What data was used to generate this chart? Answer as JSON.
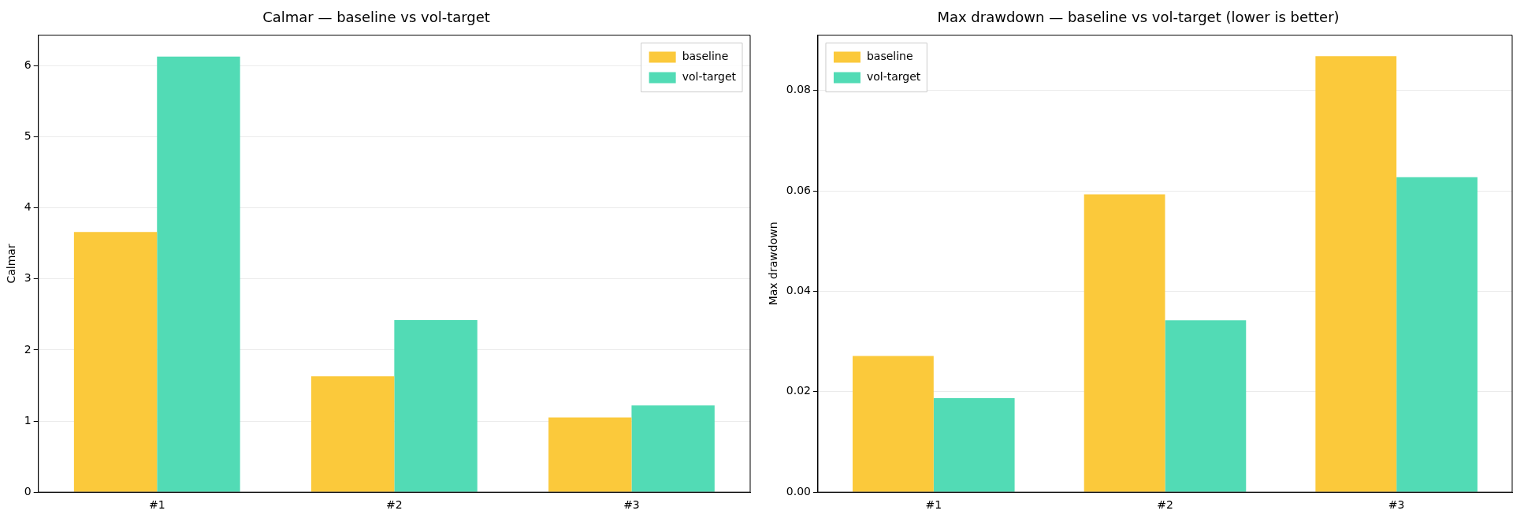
{
  "chart_data": [
    {
      "type": "bar",
      "title": "Calmar — baseline vs vol-target",
      "ylabel": "Calmar",
      "categories": [
        "#1",
        "#2",
        "#3"
      ],
      "series": [
        {
          "name": "baseline",
          "color": "#fbc93b",
          "values": [
            3.66,
            1.63,
            1.05
          ]
        },
        {
          "name": "vol-target",
          "color": "#52dbb5",
          "values": [
            6.13,
            2.42,
            1.22
          ]
        }
      ],
      "ylim": [
        0,
        6.43
      ],
      "yticks": [
        0,
        1,
        2,
        3,
        4,
        5,
        6
      ],
      "grid": "y",
      "legend": "top right"
    },
    {
      "type": "bar",
      "title": "Max drawdown — baseline vs vol-target (lower is better)",
      "ylabel": "Max drawdown",
      "categories": [
        "#1",
        "#2",
        "#3"
      ],
      "series": [
        {
          "name": "baseline",
          "color": "#fbc93b",
          "values": [
            0.0271,
            0.0593,
            0.0868
          ]
        },
        {
          "name": "vol-target",
          "color": "#52dbb5",
          "values": [
            0.0187,
            0.0342,
            0.0627
          ]
        }
      ],
      "ylim": [
        0,
        0.091
      ],
      "yticks": [
        {
          "value": 0,
          "label": "0.00"
        },
        {
          "value": 0.02,
          "label": "0.02"
        },
        {
          "value": 0.04,
          "label": "0.04"
        },
        {
          "value": 0.06,
          "label": "0.06"
        },
        {
          "value": 0.08,
          "label": "0.08"
        }
      ],
      "grid": "y",
      "legend": "top left"
    }
  ]
}
